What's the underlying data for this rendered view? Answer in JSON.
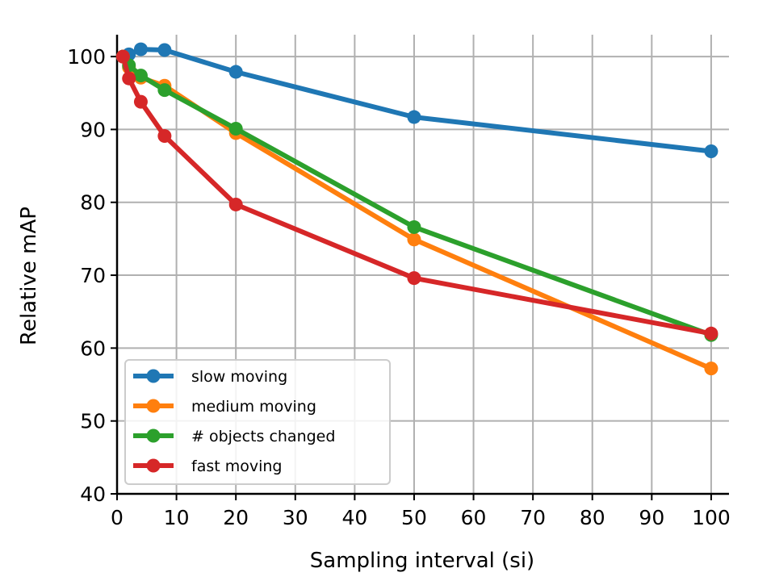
{
  "chart_data": {
    "type": "line",
    "title": "",
    "xlabel": "Sampling interval (si)",
    "ylabel": "Relative mAP",
    "xlim": [
      0,
      103
    ],
    "ylim": [
      40,
      103
    ],
    "xticks": [
      0,
      10,
      20,
      30,
      40,
      50,
      60,
      70,
      80,
      90,
      100
    ],
    "yticks": [
      40,
      50,
      60,
      70,
      80,
      90,
      100
    ],
    "grid": true,
    "legend_position": "lower-left",
    "series": [
      {
        "name": "slow moving",
        "color": "#1f77b4",
        "x": [
          1,
          2,
          4,
          8,
          20,
          50,
          100
        ],
        "y": [
          100,
          100.3,
          101,
          100.9,
          97.9,
          91.7,
          87
        ]
      },
      {
        "name": "medium moving",
        "color": "#ff7f0e",
        "x": [
          1,
          2,
          4,
          8,
          20,
          50,
          100
        ],
        "y": [
          100,
          98.5,
          97.1,
          96,
          89.5,
          74.9,
          57.2
        ]
      },
      {
        "name": "# objects changed",
        "color": "#2ca02c",
        "x": [
          1,
          2,
          4,
          8,
          20,
          50,
          100
        ],
        "y": [
          100,
          98.8,
          97.4,
          95.4,
          90.1,
          76.6,
          61.8
        ]
      },
      {
        "name": "fast moving",
        "color": "#d62728",
        "x": [
          1,
          2,
          4,
          8,
          20,
          50,
          100
        ],
        "y": [
          100,
          97,
          93.8,
          89.1,
          79.7,
          69.6,
          62
        ]
      }
    ]
  }
}
